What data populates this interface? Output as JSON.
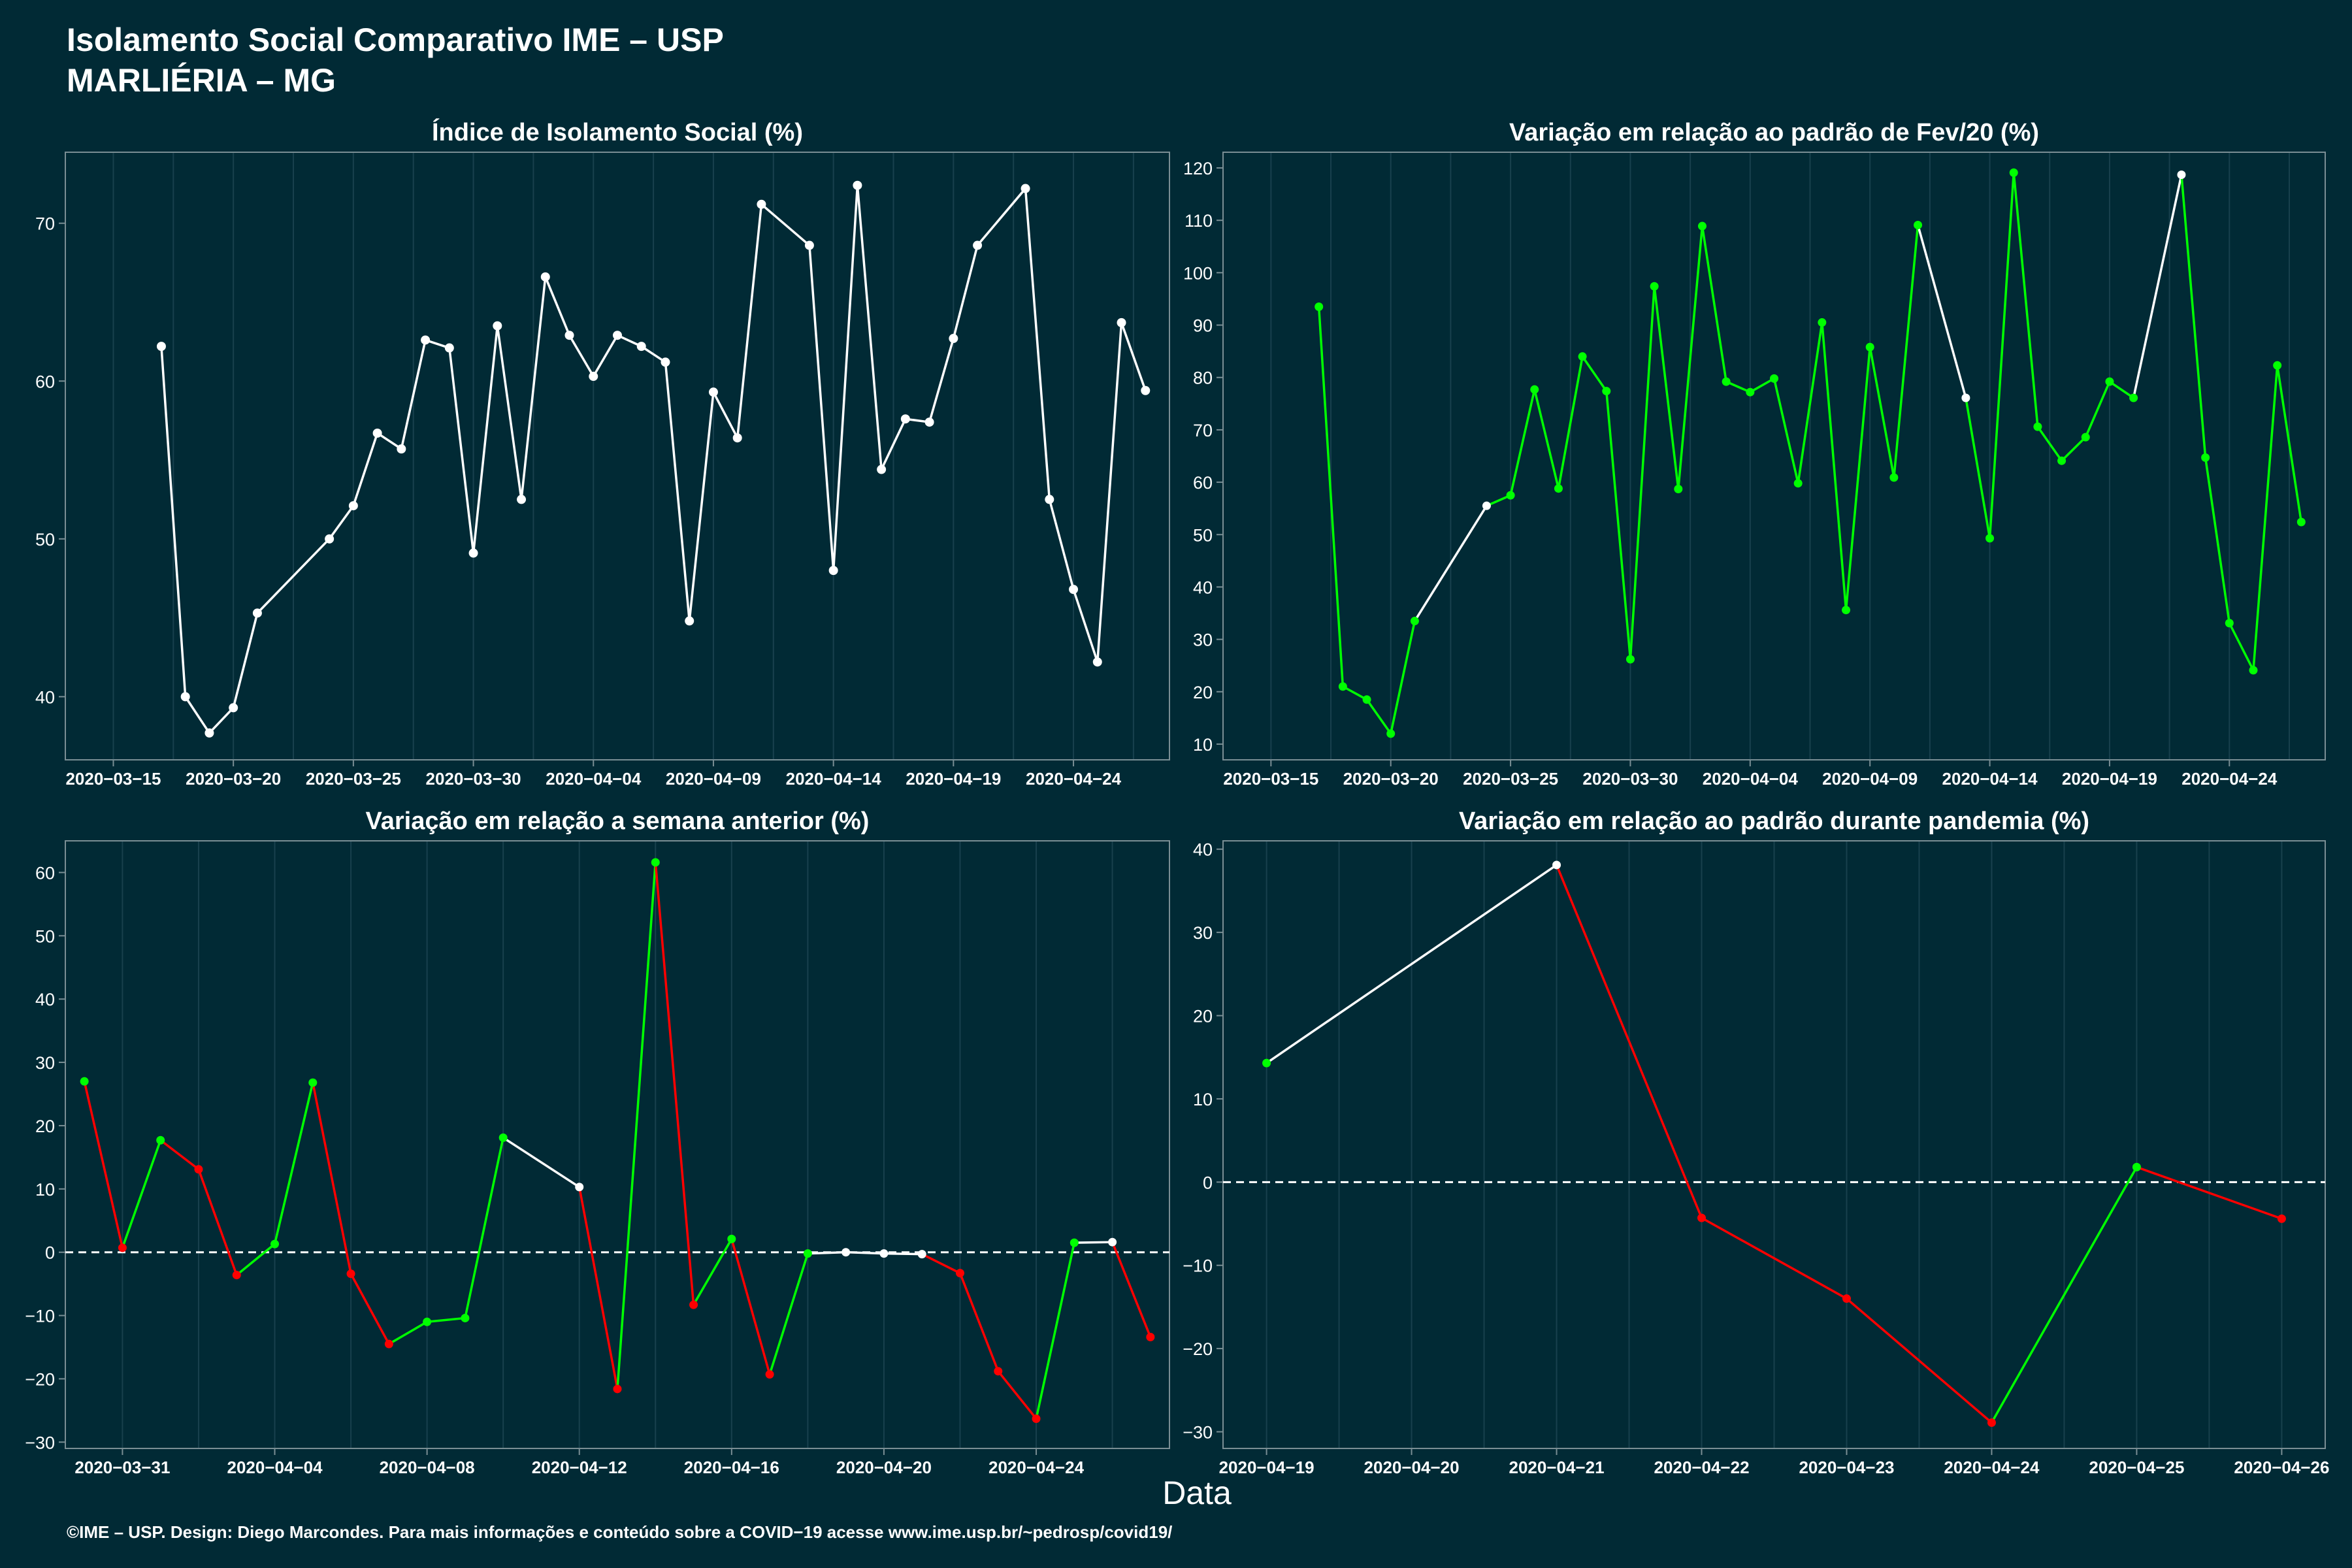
{
  "header": {
    "title": "Isolamento Social Comparativo IME – USP",
    "subtitle": "MARLIÉRIA – MG"
  },
  "xaxis_title": "Data",
  "footer": "©IME – USP. Design: Diego Marcondes. Para mais informações e conteúdo sobre a COVID−19 acesse www.ime.usp.br/~pedrosp/covid19/",
  "colors": {
    "background": "#012a35",
    "white": "#ffffff",
    "green": "#00ff00",
    "red": "#ff0000"
  },
  "chart_data": [
    {
      "type": "line",
      "title": "Índice de Isolamento Social (%)",
      "xlabel": "",
      "ylabel": "",
      "xlim": [
        "2020-03-13",
        "2020-04-28"
      ],
      "ylim": [
        36,
        74.5
      ],
      "xticks": [
        "2020-03-15",
        "2020-03-20",
        "2020-03-25",
        "2020-03-30",
        "2020-04-04",
        "2020-04-09",
        "2020-04-14",
        "2020-04-19",
        "2020-04-24"
      ],
      "yticks": [
        40,
        50,
        60,
        70
      ],
      "zero_line": false,
      "series": [
        {
          "x": [
            "2020-03-17",
            "2020-03-18",
            "2020-03-19",
            "2020-03-20",
            "2020-03-21",
            "2020-03-24",
            "2020-03-25",
            "2020-03-26",
            "2020-03-27",
            "2020-03-28",
            "2020-03-29",
            "2020-03-30",
            "2020-03-31",
            "2020-04-01",
            "2020-04-02",
            "2020-04-03",
            "2020-04-04",
            "2020-04-05",
            "2020-04-06",
            "2020-04-07",
            "2020-04-08",
            "2020-04-09",
            "2020-04-10",
            "2020-04-11",
            "2020-04-13",
            "2020-04-14",
            "2020-04-15",
            "2020-04-16",
            "2020-04-17",
            "2020-04-18",
            "2020-04-19",
            "2020-04-20",
            "2020-04-22",
            "2020-04-23",
            "2020-04-24",
            "2020-04-25",
            "2020-04-26",
            "2020-04-27"
          ],
          "values": [
            62.2,
            40,
            37.7,
            39.3,
            45.3,
            50,
            52.1,
            56.7,
            55.7,
            62.6,
            62.1,
            49.1,
            63.5,
            52.5,
            66.6,
            62.9,
            60.3,
            62.9,
            62.2,
            61.2,
            44.8,
            59.3,
            56.4,
            71.2,
            68.6,
            48,
            72.4,
            54.4,
            57.6,
            57.4,
            62.7,
            68.6,
            72.2,
            52.5,
            46.8,
            42.2,
            63.7,
            59.4
          ]
        }
      ]
    },
    {
      "type": "line",
      "title": "Variação em relação ao padrão de Fev/20 (%)",
      "xlabel": "",
      "ylabel": "",
      "xlim": [
        "2020-03-13",
        "2020-04-28"
      ],
      "ylim": [
        7,
        123
      ],
      "xticks": [
        "2020-03-15",
        "2020-03-20",
        "2020-03-25",
        "2020-03-30",
        "2020-04-04",
        "2020-04-09",
        "2020-04-14",
        "2020-04-19",
        "2020-04-24"
      ],
      "yticks": [
        10,
        20,
        30,
        40,
        50,
        60,
        70,
        80,
        90,
        100,
        110,
        120
      ],
      "zero_line": false,
      "series": [
        {
          "x": [
            "2020-03-17",
            "2020-03-18",
            "2020-03-19",
            "2020-03-20",
            "2020-03-21",
            "2020-03-24",
            "2020-03-25",
            "2020-03-26",
            "2020-03-27",
            "2020-03-28",
            "2020-03-29",
            "2020-03-30",
            "2020-03-31",
            "2020-04-01",
            "2020-04-02",
            "2020-04-03",
            "2020-04-04",
            "2020-04-05",
            "2020-04-06",
            "2020-04-07",
            "2020-04-08",
            "2020-04-09",
            "2020-04-10",
            "2020-04-11",
            "2020-04-13",
            "2020-04-14",
            "2020-04-15",
            "2020-04-16",
            "2020-04-17",
            "2020-04-18",
            "2020-04-19",
            "2020-04-20",
            "2020-04-22",
            "2020-04-23",
            "2020-04-24",
            "2020-04-25",
            "2020-04-26",
            "2020-04-27"
          ],
          "values": [
            93.5,
            21,
            18.5,
            12,
            33.5,
            55.5,
            57.5,
            77.7,
            58.8,
            84,
            77.4,
            26.2,
            97.4,
            58.7,
            108.9,
            79.2,
            77.2,
            79.8,
            59.8,
            90.5,
            35.6,
            85.8,
            60.9,
            109.1,
            76.1,
            49.3,
            119.1,
            70.6,
            64.1,
            68.6,
            79.2,
            76.1,
            118.7,
            64.7,
            33.1,
            24.1,
            82.3,
            52.4
          ]
        }
      ]
    },
    {
      "type": "line",
      "title": "Variação em relação a semana anterior (%)",
      "xlabel": "",
      "ylabel": "",
      "xlim": [
        "2020-03-29.5",
        "2020-04-27.5"
      ],
      "ylim": [
        -31,
        65
      ],
      "xticks": [
        "2020-03-31",
        "2020-04-04",
        "2020-04-08",
        "2020-04-12",
        "2020-04-16",
        "2020-04-20",
        "2020-04-24"
      ],
      "yticks": [
        -30,
        -20,
        -10,
        0,
        10,
        20,
        30,
        40,
        50,
        60
      ],
      "zero_line": true,
      "series": [
        {
          "x": [
            "2020-03-30",
            "2020-03-31",
            "2020-04-01",
            "2020-04-02",
            "2020-04-03",
            "2020-04-04",
            "2020-04-05",
            "2020-04-06",
            "2020-04-07",
            "2020-04-08",
            "2020-04-09",
            "2020-04-10",
            "2020-04-12",
            "2020-04-13",
            "2020-04-14",
            "2020-04-15",
            "2020-04-16",
            "2020-04-17",
            "2020-04-18",
            "2020-04-19",
            "2020-04-20",
            "2020-04-21",
            "2020-04-22",
            "2020-04-23",
            "2020-04-24",
            "2020-04-25",
            "2020-04-26",
            "2020-04-27"
          ],
          "values": [
            27,
            0.7,
            17.7,
            13.1,
            -3.6,
            1.3,
            26.8,
            -3.4,
            -14.5,
            -11,
            -10.4,
            18.1,
            10.3,
            -21.6,
            61.6,
            -8.3,
            2.1,
            -19.3,
            -0.2,
            0,
            -0.2,
            -0.3,
            -3.3,
            -18.8,
            -26.3,
            1.5,
            1.6,
            -13.4
          ]
        }
      ]
    },
    {
      "type": "line",
      "title": "Variação em relação ao padrão durante pandemia (%)",
      "xlabel": "",
      "ylabel": "",
      "xlim": [
        "2020-04-18.7",
        "2020-04-26.3"
      ],
      "ylim": [
        -32,
        41
      ],
      "xticks": [
        "2020-04-19",
        "2020-04-20",
        "2020-04-21",
        "2020-04-22",
        "2020-04-23",
        "2020-04-24",
        "2020-04-25",
        "2020-04-26"
      ],
      "yticks": [
        -30,
        -20,
        -10,
        0,
        10,
        20,
        30,
        40
      ],
      "zero_line": true,
      "series": [
        {
          "x": [
            "2020-04-19",
            "2020-04-21",
            "2020-04-22",
            "2020-04-23",
            "2020-04-24",
            "2020-04-25",
            "2020-04-26"
          ],
          "values": [
            14.3,
            38.1,
            -4.3,
            -14,
            -28.9,
            1.8,
            -4.4
          ]
        }
      ]
    }
  ]
}
